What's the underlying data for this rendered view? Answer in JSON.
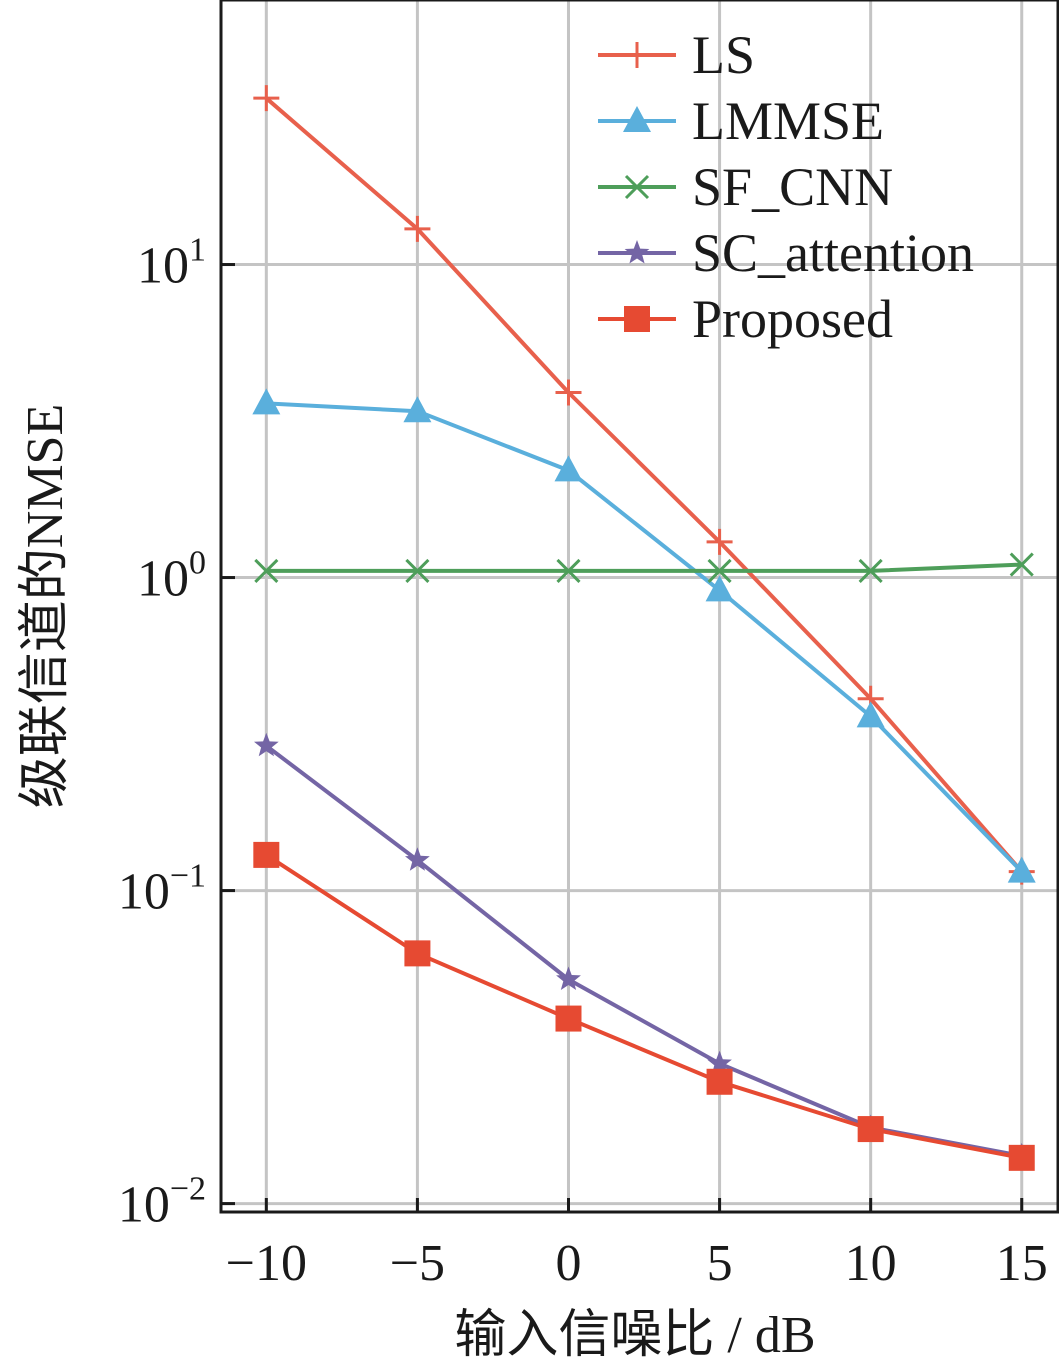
{
  "chart_data": {
    "type": "line",
    "xlabel": "输入信噪比 / dB",
    "ylabel": "级联信道的NMSE",
    "x": [
      -10,
      -5,
      0,
      5,
      10,
      15
    ],
    "xlim": [
      -11.5,
      16.2
    ],
    "ylim": [
      0.0094,
      70
    ],
    "yscale": "log",
    "grid": true,
    "legend_position": "top-right",
    "xticks": [
      -10,
      -5,
      0,
      5,
      10,
      15
    ],
    "xtick_labels": [
      "−10",
      "−5",
      "0",
      "5",
      "10",
      "15"
    ],
    "yticks": [
      {
        "value": 10,
        "base": "10",
        "exp": "1"
      },
      {
        "value": 1,
        "base": "10",
        "exp": "0"
      },
      {
        "value": 0.1,
        "base": "10",
        "exp": "−1"
      },
      {
        "value": 0.01,
        "base": "10",
        "exp": "−2"
      }
    ],
    "series": [
      {
        "name": "LS",
        "color": "#e8604c",
        "marker": "plus",
        "values": [
          34,
          13,
          3.9,
          1.3,
          0.41,
          0.115
        ]
      },
      {
        "name": "LMMSE",
        "color": "#5aafdc",
        "marker": "triangle",
        "values": [
          3.6,
          3.4,
          2.2,
          0.91,
          0.36,
          0.115
        ]
      },
      {
        "name": "SF_CNN",
        "color": "#4e9e5a",
        "marker": "x",
        "values": [
          1.05,
          1.05,
          1.05,
          1.05,
          1.05,
          1.1
        ]
      },
      {
        "name": "SC_attention",
        "color": "#7465a5",
        "marker": "star",
        "values": [
          0.29,
          0.125,
          0.052,
          0.028,
          0.0175,
          0.0142
        ]
      },
      {
        "name": "Proposed",
        "color": "#e64a32",
        "marker": "square",
        "values": [
          0.13,
          0.063,
          0.039,
          0.0245,
          0.0173,
          0.014
        ]
      }
    ]
  }
}
